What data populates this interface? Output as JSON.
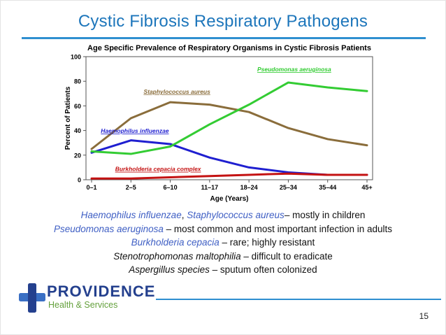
{
  "slide": {
    "title": "Cystic Fibrosis Respiratory Pathogens",
    "page_number": "15"
  },
  "colors": {
    "title_blue": "#1d76bb",
    "rule_blue": "#2f8fd0",
    "pathogen_blue": "#3f5fc4",
    "brand_blue": "#24408e",
    "brand_green": "#64a03c"
  },
  "chart_data": {
    "type": "line",
    "title": "Age Specific Prevalence of Respiratory Organisms in Cystic Fibrosis Patients",
    "xlabel": "Age (Years)",
    "ylabel": "Percent of Patients",
    "ylim": [
      0,
      100
    ],
    "yticks": [
      0,
      20,
      40,
      60,
      80,
      100
    ],
    "grid": false,
    "legend": "inline-labels",
    "categories": [
      "0–1",
      "2–5",
      "6–10",
      "11–17",
      "18–24",
      "25–34",
      "35–44",
      "45+"
    ],
    "series": [
      {
        "name": "Staphylococcus aureus",
        "color": "#8a6d3b",
        "values": [
          25,
          50,
          63,
          61,
          55,
          42,
          33,
          28
        ],
        "label_x": 2.17,
        "label_y": 70
      },
      {
        "name": "Haemophilus influenzae",
        "color": "#1f1fd0",
        "values": [
          22,
          32,
          29,
          18,
          10,
          6,
          4,
          4
        ],
        "label_x": 1.1,
        "label_y": 38
      },
      {
        "name": "Burkholderia cepacia complex",
        "color": "#c41212",
        "values": [
          1,
          1,
          2,
          3,
          4,
          5,
          4,
          4
        ],
        "label_x": 1.69,
        "label_y": 7
      },
      {
        "name": "Pseudomonas aeruginosa",
        "color": "#33cc33",
        "values": [
          23,
          21,
          27,
          45,
          61,
          79,
          75,
          72
        ],
        "label_x": 5.15,
        "label_y": 88
      }
    ]
  },
  "notes": {
    "line1": {
      "name_a": "Haemophilus influenzae",
      "sep": ", ",
      "name_b": "Staphylococcus aureus",
      "rest": "– mostly in children"
    },
    "line2": {
      "name": "Pseudomonas aeruginosa",
      "rest": " – most common and most important infection in adults"
    },
    "line3": {
      "name": "Burkholderia cepacia",
      "rest": " – rare; highly resistant"
    },
    "line4": {
      "name": "Stenotrophomonas maltophilia",
      "rest": " – difficult to eradicate"
    },
    "line5": {
      "name": "Aspergillus species",
      "rest": " – sputum often colonized"
    }
  },
  "footer": {
    "brand_name": "PROVIDENCE",
    "brand_tagline": "Health & Services"
  }
}
